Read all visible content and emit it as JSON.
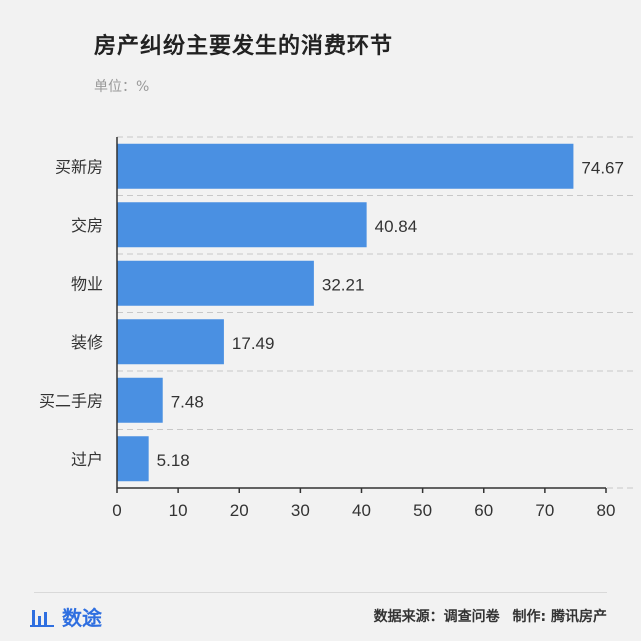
{
  "header": {
    "title": "房产纠纷主要发生的消费环节",
    "unit": "单位：%"
  },
  "footer": {
    "brand": "数途",
    "source": "数据来源：调查问卷",
    "maker": "制作: 腾讯房产"
  },
  "colors": {
    "bar": "#4a90e2",
    "background": "#f2f2f2",
    "axis": "#333333",
    "grid": "#c8c8c8",
    "brand": "#2f6fe0"
  },
  "chart_data": {
    "type": "bar",
    "orientation": "horizontal",
    "title": "房产纠纷主要发生的消费环节",
    "subtitle": "单位：%",
    "categories": [
      "买新房",
      "交房",
      "物业",
      "装修",
      "买二手房",
      "过户"
    ],
    "values": [
      74.67,
      40.84,
      32.21,
      17.49,
      7.48,
      5.18
    ],
    "value_labels": [
      "74.67",
      "40.84",
      "32.21",
      "17.49",
      "7.48",
      "5.18"
    ],
    "xlim": [
      0,
      80
    ],
    "x_ticks": [
      0,
      10,
      20,
      30,
      40,
      50,
      60,
      70,
      80
    ],
    "grid": "horizontal dashed",
    "legend": "none"
  }
}
